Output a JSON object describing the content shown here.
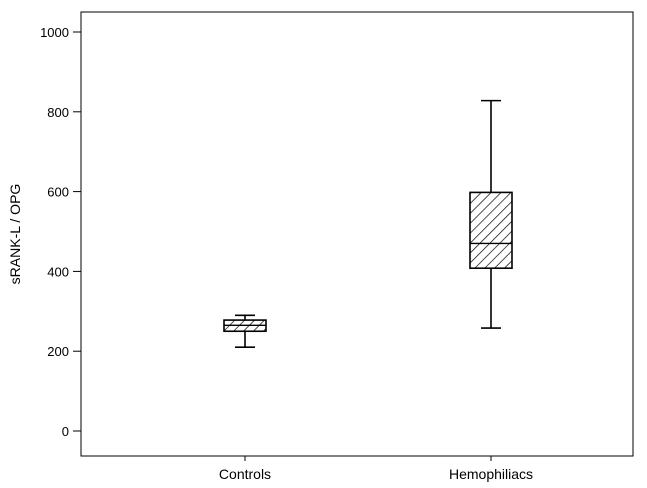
{
  "chart_data": {
    "type": "boxplot",
    "ylabel": "sRANK-L / OPG",
    "ylim": [
      -60,
      1060
    ],
    "yticks": [
      0,
      200,
      400,
      600,
      800,
      1000
    ],
    "categories": [
      "Controls",
      "Hemophiliacs"
    ],
    "boxes": [
      {
        "category": "Controls",
        "whisker_low": 210,
        "q1": 250,
        "median": 265,
        "q3": 278,
        "whisker_high": 290
      },
      {
        "category": "Hemophiliacs",
        "whisker_low": 258,
        "q1": 408,
        "median": 470,
        "q3": 598,
        "whisker_high": 828
      }
    ],
    "fill_pattern": "diagonal-hatch",
    "grid": false
  }
}
